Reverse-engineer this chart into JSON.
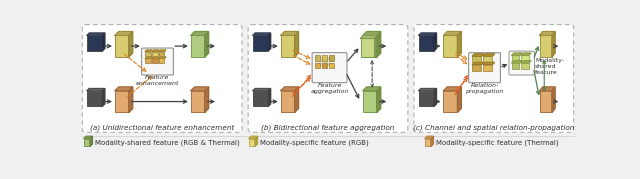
{
  "bg_color": "#f0f0f0",
  "title_a": "(a) Unidirectional feature enhancement",
  "title_b": "(b) Bidirectional feature aggregation",
  "title_c": "(c) Channel and spatial relation-propagation",
  "legend_items": [
    {
      "label": "Modality-shared feature (RGB & Thermal)",
      "face": "#a8c878",
      "edge": "#607840",
      "top": "#88a858",
      "side": "#708848"
    },
    {
      "label": "Modality-specific feature (RGB)",
      "face": "#e8d878",
      "edge": "#a89838",
      "top": "#c8b858",
      "side": "#b0a040"
    },
    {
      "label": "Modality-specific feature (Thermal)",
      "face": "#e8b878",
      "edge": "#a87838",
      "top": "#c89858",
      "side": "#b08040"
    }
  ],
  "panel_border": "#b0b0b0",
  "arrow_black": "#404040",
  "arrow_orange": "#e08020",
  "arrow_green": "#508050",
  "arrow_dashed_black": "#606060",
  "text_color": "#303030"
}
